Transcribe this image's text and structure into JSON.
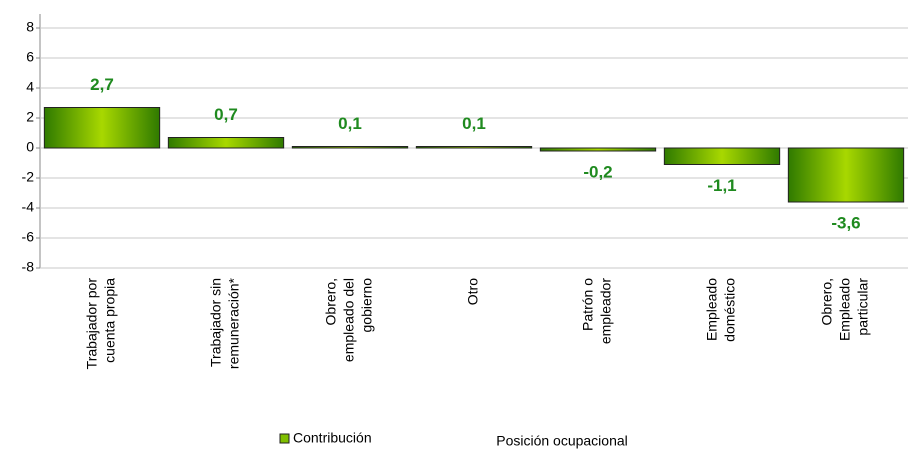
{
  "chart_data": {
    "type": "bar",
    "categories": [
      [
        "Trabajador por",
        "cuenta propia"
      ],
      [
        "Trabajador sin",
        "remuneración*"
      ],
      [
        "Obrero,",
        "empleado del",
        "gobierno"
      ],
      [
        "Otro"
      ],
      [
        "Patrón o",
        "empleador"
      ],
      [
        "Empleado",
        "doméstico"
      ],
      [
        "Obrero,",
        "Empleado",
        "particular"
      ]
    ],
    "values": [
      2.7,
      0.7,
      0.1,
      0.1,
      -0.2,
      -1.1,
      -3.6
    ],
    "value_labels": [
      "2,7",
      "0,7",
      "0,1",
      "0,1",
      "-0,2",
      "-1,1",
      "-3,6"
    ],
    "series_name": "Contribución",
    "x_label": "Posición ocupacional",
    "color": "#7fbf00",
    "ylim": [
      -8,
      8
    ],
    "yticks": [
      -8,
      -6,
      -4,
      -2,
      0,
      2,
      4,
      6,
      8
    ],
    "grid": true
  }
}
